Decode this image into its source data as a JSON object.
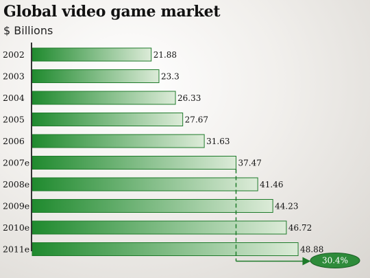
{
  "title": "Global video game market",
  "subtitle": "$ Billions",
  "colors": {
    "bar_dark": "#1f8a2e",
    "bar_light": "#dcebd8",
    "bar_stroke": "#1e7a2a",
    "badge": "#2e8b3a"
  },
  "chart_data": {
    "type": "bar",
    "orientation": "horizontal",
    "categories": [
      "2002",
      "2003",
      "2004",
      "2005",
      "2006",
      "2007e",
      "2008e",
      "2009e",
      "2010e",
      "2011e"
    ],
    "values": [
      21.88,
      23.3,
      26.33,
      27.67,
      31.63,
      37.47,
      41.46,
      44.23,
      46.72,
      48.88
    ],
    "xlim": [
      0,
      49.5
    ],
    "grid": false,
    "annotation": {
      "label": "30.4%",
      "from_category": "2007e",
      "to_category": "2011e"
    }
  }
}
